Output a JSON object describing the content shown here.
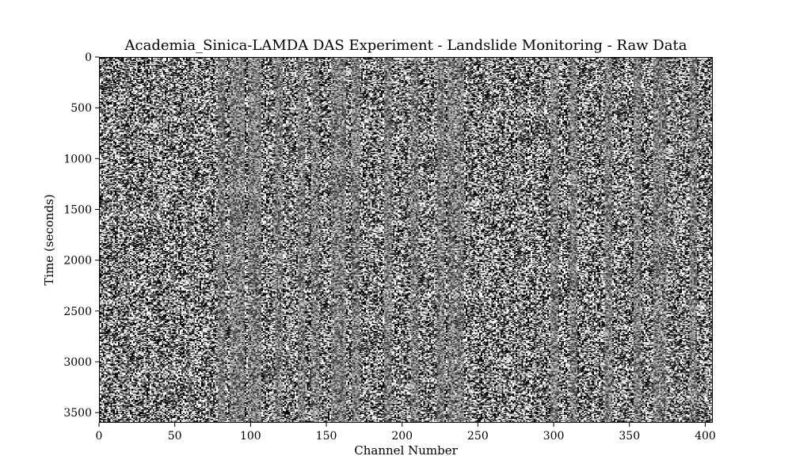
{
  "chart_data": {
    "type": "heatmap",
    "title": "Academia_Sinica-LAMDA DAS Experiment - Landslide Monitoring - Raw Data",
    "xlabel": "Channel Number",
    "ylabel": "Time (seconds)",
    "xlim": [
      0,
      405
    ],
    "ylim": [
      3600,
      0
    ],
    "x_ticks": [
      0,
      50,
      100,
      150,
      200,
      250,
      300,
      350,
      400
    ],
    "y_ticks": [
      0,
      500,
      1000,
      1500,
      2000,
      2500,
      3000,
      3500
    ],
    "colormap": "grayscale (black to white)",
    "grid": false,
    "description_of_values": "raw DAS strain-rate samples; high-amplitude random noise with vertical banding by channel",
    "gray_banded_channels": [
      80,
      88,
      93,
      100,
      104,
      118,
      133,
      142,
      155,
      160,
      169,
      190,
      208,
      225,
      232,
      238,
      300,
      313,
      336,
      355,
      368,
      372,
      392
    ],
    "colors": {
      "background": "#ffffff",
      "text": "#000000",
      "mid_gray": "#808080"
    }
  }
}
